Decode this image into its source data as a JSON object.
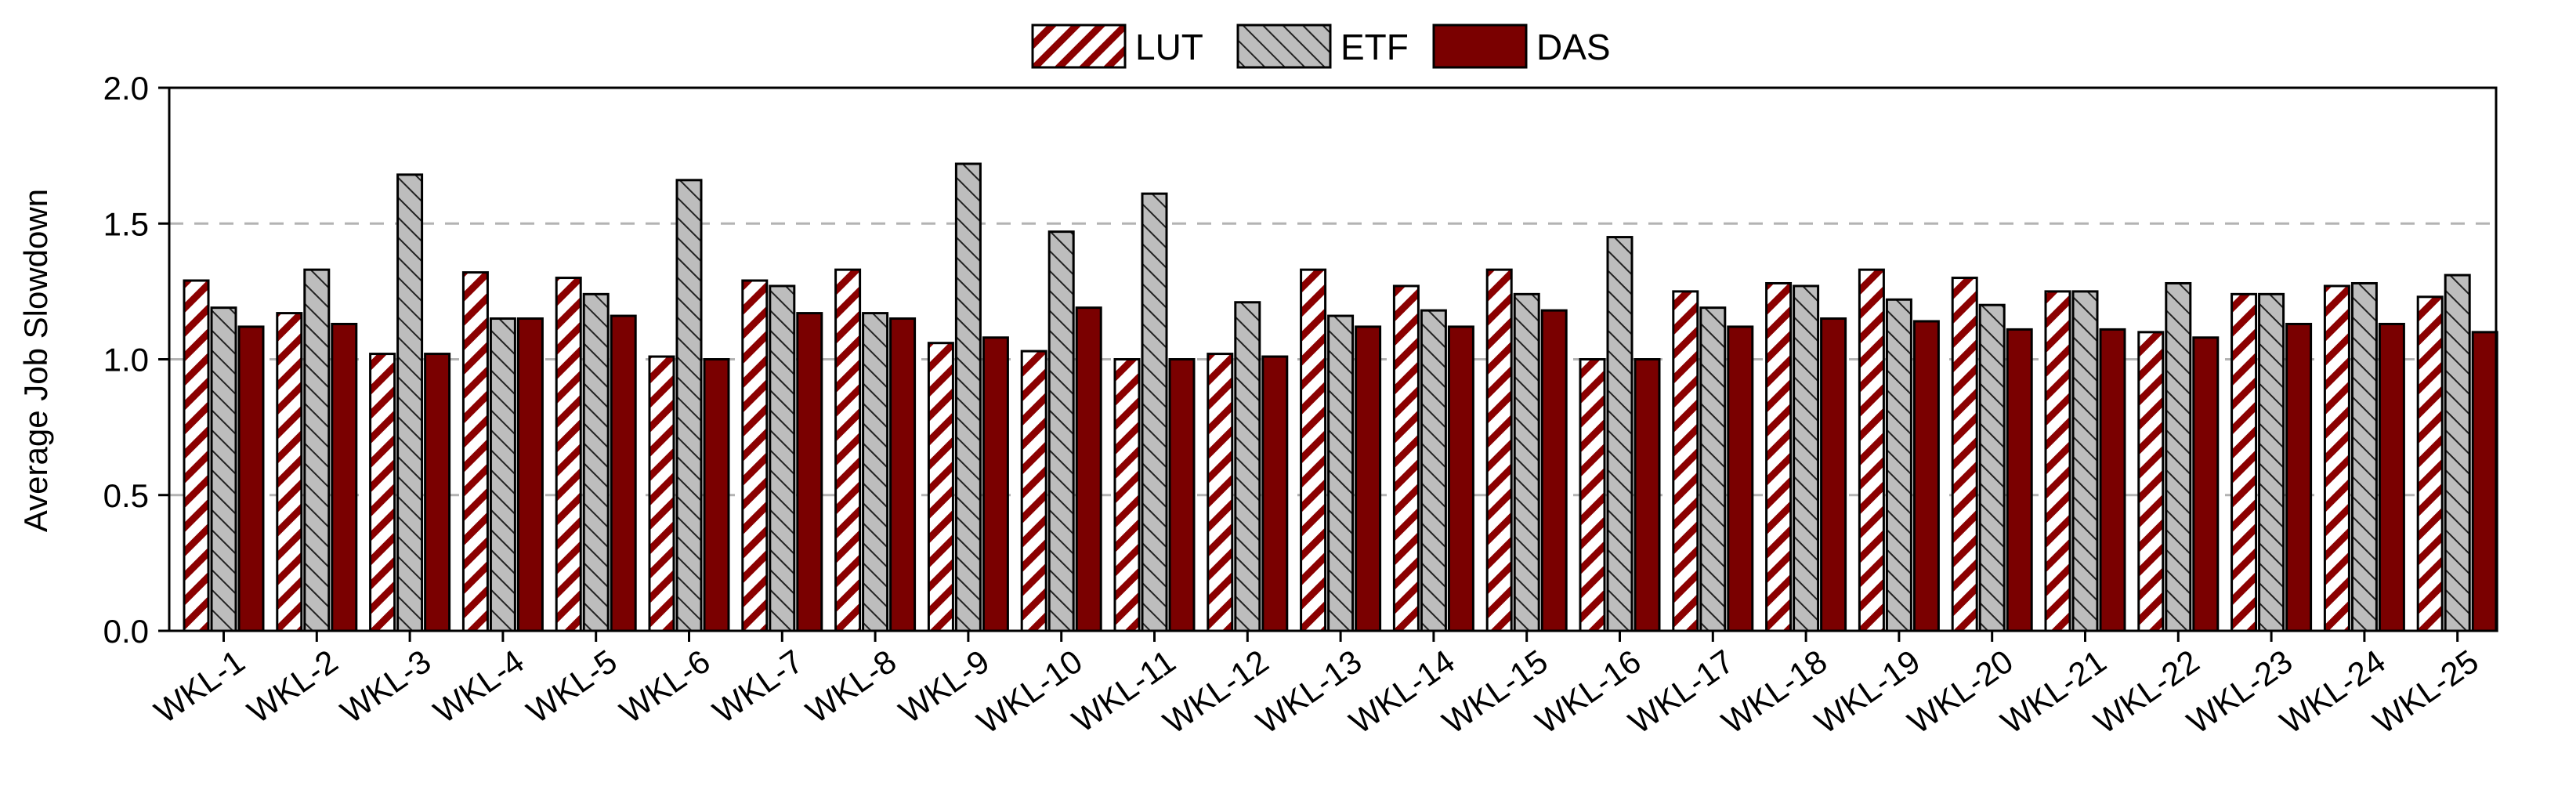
{
  "chart_data": {
    "type": "bar",
    "ylabel": "Average Job Slowdown",
    "ylim": [
      0,
      2.0
    ],
    "yticks": [
      "0.0",
      "0.5",
      "1.0",
      "1.5",
      "2.0"
    ],
    "grid": "horizontal-dashed",
    "legend_position": "top-center",
    "categories": [
      "WKL-1",
      "WKL-2",
      "WKL-3",
      "WKL-4",
      "WKL-5",
      "WKL-6",
      "WKL-7",
      "WKL-8",
      "WKL-9",
      "WKL-10",
      "WKL-11",
      "WKL-12",
      "WKL-13",
      "WKL-14",
      "WKL-15",
      "WKL-16",
      "WKL-17",
      "WKL-18",
      "WKL-19",
      "WKL-20",
      "WKL-21",
      "WKL-22",
      "WKL-23",
      "WKL-24",
      "WKL-25"
    ],
    "series": [
      {
        "name": "LUT",
        "pattern": "hatch-red",
        "values": [
          1.29,
          1.17,
          1.02,
          1.32,
          1.3,
          1.01,
          1.29,
          1.33,
          1.06,
          1.03,
          1.0,
          1.02,
          1.33,
          1.27,
          1.33,
          1.0,
          1.25,
          1.28,
          1.33,
          1.3,
          1.25,
          1.1,
          1.24,
          1.27,
          1.23
        ]
      },
      {
        "name": "ETF",
        "pattern": "hatch-gray",
        "values": [
          1.19,
          1.33,
          1.68,
          1.15,
          1.24,
          1.66,
          1.27,
          1.17,
          1.72,
          1.47,
          1.61,
          1.21,
          1.16,
          1.18,
          1.24,
          1.45,
          1.19,
          1.27,
          1.22,
          1.2,
          1.25,
          1.28,
          1.24,
          1.28,
          1.31
        ]
      },
      {
        "name": "DAS",
        "pattern": "solid-dark-red",
        "values": [
          1.12,
          1.13,
          1.02,
          1.15,
          1.16,
          1.0,
          1.17,
          1.15,
          1.08,
          1.19,
          1.0,
          1.01,
          1.12,
          1.12,
          1.18,
          1.0,
          1.12,
          1.15,
          1.14,
          1.11,
          1.11,
          1.08,
          1.13,
          1.13,
          1.1
        ]
      }
    ]
  },
  "colors": {
    "lut_stripe": "#8b0000",
    "etf_fill": "#bdbdbd",
    "das_fill": "#7a0000",
    "grid": "#b3b3b3"
  }
}
